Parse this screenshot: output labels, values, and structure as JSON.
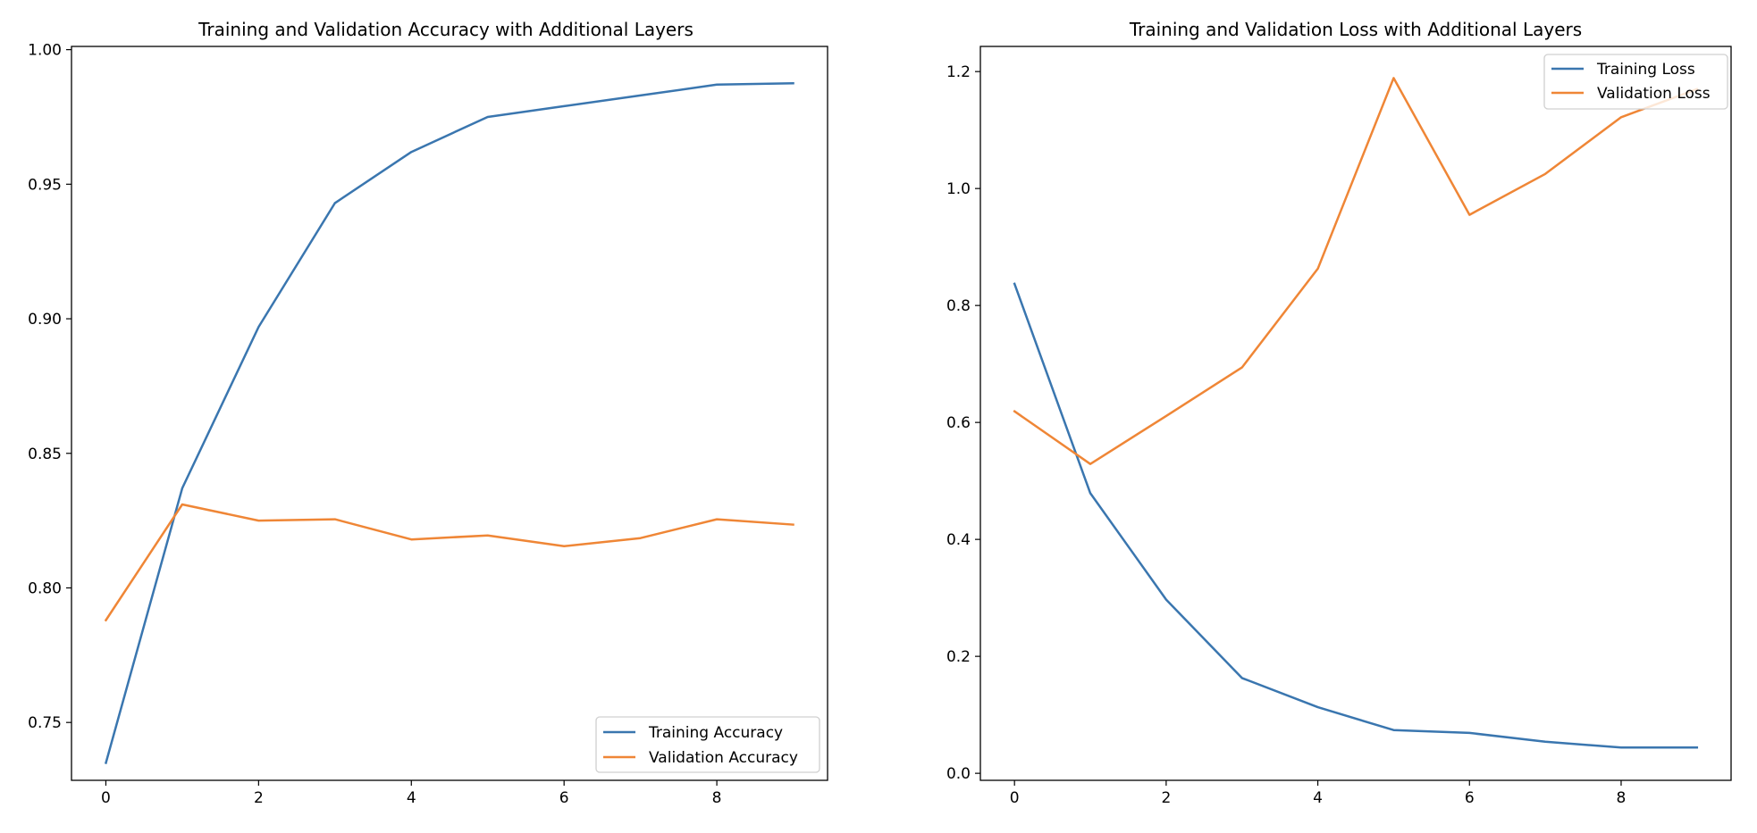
{
  "colors": {
    "training": "#3a76af",
    "validation": "#ef8636",
    "axes": "#000000",
    "legend_border": "#d0d0d0",
    "background": "#ffffff"
  },
  "chart_data": [
    {
      "type": "line",
      "title": "Training and Validation Accuracy with Additional Layers",
      "xlabel": "",
      "ylabel": "",
      "x": [
        0,
        1,
        2,
        3,
        4,
        5,
        6,
        7,
        8,
        9
      ],
      "xlim": [
        -0.45,
        9.45
      ],
      "ylim": [
        0.7285,
        1.0012
      ],
      "xticks": [
        0,
        2,
        4,
        6,
        8
      ],
      "xtick_labels": [
        "0",
        "2",
        "4",
        "6",
        "8"
      ],
      "yticks": [
        0.75,
        0.8,
        0.85,
        0.9,
        0.95,
        1.0
      ],
      "ytick_labels": [
        "0.75",
        "0.80",
        "0.85",
        "0.90",
        "0.95",
        "1.00"
      ],
      "grid": false,
      "legend_position": "lower right",
      "series": [
        {
          "name": "Training Accuracy",
          "color": "#3a76af",
          "values": [
            0.735,
            0.837,
            0.897,
            0.943,
            0.962,
            0.975,
            0.979,
            0.983,
            0.987,
            0.9875
          ]
        },
        {
          "name": "Validation Accuracy",
          "color": "#ef8636",
          "values": [
            0.788,
            0.831,
            0.825,
            0.8255,
            0.818,
            0.8195,
            0.8155,
            0.8185,
            0.8255,
            0.8235
          ]
        }
      ]
    },
    {
      "type": "line",
      "title": "Training and Validation Loss with Additional Layers",
      "xlabel": "",
      "ylabel": "",
      "x": [
        0,
        1,
        2,
        3,
        4,
        5,
        6,
        7,
        8,
        9
      ],
      "xlim": [
        -0.45,
        9.45
      ],
      "ylim": [
        -0.012,
        1.243
      ],
      "xticks": [
        0,
        2,
        4,
        6,
        8
      ],
      "xtick_labels": [
        "0",
        "2",
        "4",
        "6",
        "8"
      ],
      "yticks": [
        0.0,
        0.2,
        0.4,
        0.6,
        0.8,
        1.0,
        1.2
      ],
      "ytick_labels": [
        "0.0",
        "0.2",
        "0.4",
        "0.6",
        "0.8",
        "1.0",
        "1.2"
      ],
      "grid": false,
      "legend_position": "upper right",
      "series": [
        {
          "name": "Training Loss",
          "color": "#3a76af",
          "values": [
            0.837,
            0.479,
            0.297,
            0.163,
            0.113,
            0.074,
            0.069,
            0.054,
            0.044,
            0.044
          ]
        },
        {
          "name": "Validation Loss",
          "color": "#ef8636",
          "values": [
            0.619,
            0.529,
            0.611,
            0.694,
            0.863,
            1.189,
            0.955,
            1.025,
            1.122,
            1.17
          ]
        }
      ]
    }
  ]
}
